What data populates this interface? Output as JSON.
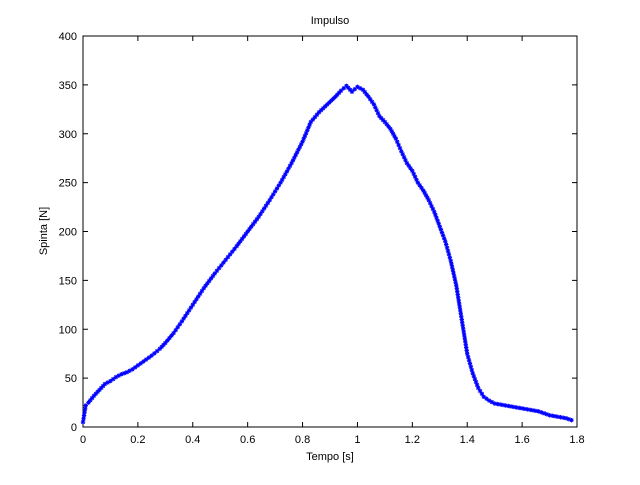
{
  "chart_data": {
    "type": "line",
    "title": "Impulso",
    "xlabel": "Tempo [s]",
    "ylabel": "Spinta [N]",
    "xlim": [
      0,
      1.8
    ],
    "ylim": [
      0,
      400
    ],
    "xticks": [
      "0",
      "0.2",
      "0.4",
      "0.6",
      "0.8",
      "1",
      "1.2",
      "1.4",
      "1.6",
      "1.8"
    ],
    "yticks": [
      "0",
      "50",
      "100",
      "150",
      "200",
      "250",
      "300",
      "350",
      "400"
    ],
    "grid": false,
    "line_color": "#0000ff",
    "marker_color": "#0000ff",
    "marker": "star",
    "series": [
      {
        "x": [
          0.0,
          0.01,
          0.02,
          0.04,
          0.06,
          0.08,
          0.1,
          0.12,
          0.14,
          0.16,
          0.18,
          0.2,
          0.22,
          0.25,
          0.28,
          0.3,
          0.33,
          0.36,
          0.4,
          0.44,
          0.48,
          0.52,
          0.56,
          0.6,
          0.64,
          0.68,
          0.72,
          0.76,
          0.8,
          0.83,
          0.86,
          0.89,
          0.92,
          0.94,
          0.96,
          0.98,
          1.0,
          1.02,
          1.04,
          1.06,
          1.08,
          1.1,
          1.12,
          1.14,
          1.16,
          1.18,
          1.2,
          1.22,
          1.24,
          1.26,
          1.28,
          1.3,
          1.32,
          1.34,
          1.36,
          1.38,
          1.4,
          1.42,
          1.44,
          1.46,
          1.48,
          1.5,
          1.52,
          1.54,
          1.56,
          1.58,
          1.6,
          1.62,
          1.64,
          1.66,
          1.68,
          1.7,
          1.72,
          1.74,
          1.76,
          1.78
        ],
        "y": [
          5,
          22,
          25,
          32,
          38,
          44,
          47,
          51,
          54,
          56,
          59,
          63,
          67,
          73,
          80,
          86,
          96,
          108,
          125,
          142,
          157,
          171,
          185,
          200,
          215,
          232,
          250,
          270,
          292,
          312,
          322,
          330,
          338,
          344,
          349,
          343,
          348,
          345,
          338,
          330,
          318,
          312,
          305,
          295,
          282,
          270,
          262,
          250,
          242,
          232,
          220,
          205,
          190,
          170,
          145,
          110,
          75,
          55,
          40,
          31,
          27,
          24,
          23,
          22,
          21,
          20,
          19,
          18,
          17,
          16,
          14,
          12,
          11,
          10,
          9,
          7
        ]
      }
    ]
  }
}
